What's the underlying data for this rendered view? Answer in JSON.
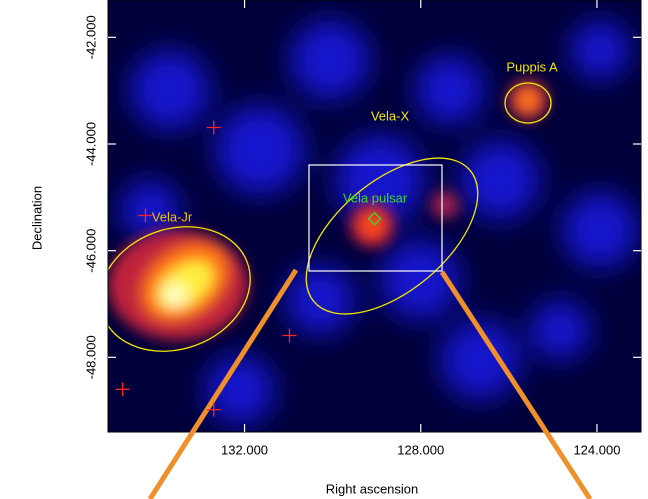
{
  "chart_data": {
    "type": "skymap",
    "x_label": "Right ascension",
    "y_label": "Declination",
    "xlim": [
      135.1,
      123.0
    ],
    "ylim": [
      -49.4,
      -41.3
    ],
    "xticks": [
      {
        "value": 132,
        "label": "132.000"
      },
      {
        "value": 128,
        "label": "128.000"
      },
      {
        "value": 124,
        "label": "124.000"
      }
    ],
    "yticks": [
      {
        "value": -42,
        "label": "-42.000"
      },
      {
        "value": -44,
        "label": "-44.000"
      },
      {
        "value": -46,
        "label": "-46.000"
      },
      {
        "value": -48,
        "label": "-48.000"
      }
    ],
    "annotations": [
      {
        "text": "Puppis A",
        "color": "#f2e600"
      },
      {
        "text": "Vela-X",
        "color": "#f2e600"
      },
      {
        "text": "Vela pulsar",
        "color": "#33dd33"
      },
      {
        "text": "Vela-Jr",
        "color": "#f2c000"
      }
    ],
    "series": [
      {
        "marker": "cross",
        "color": "#ff2020",
        "x": [
          132.7,
          134.25,
          130.98,
          134.77,
          132.7
        ],
        "y": [
          -43.69,
          -45.34,
          -47.59,
          -48.6,
          -48.98
        ]
      },
      {
        "marker": "diamond",
        "color": "#33dd33",
        "x": [
          129.05
        ],
        "y": [
          -45.4
        ]
      }
    ]
  }
}
